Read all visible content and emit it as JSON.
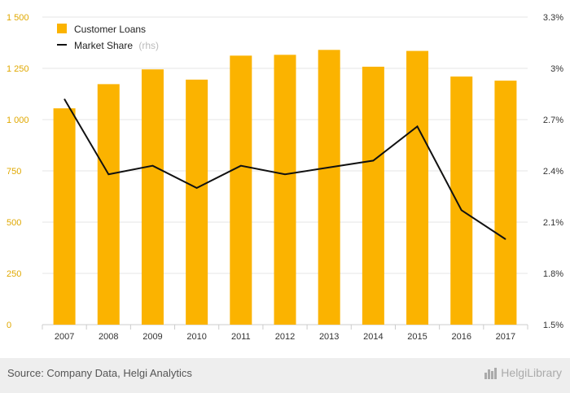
{
  "chart_data": {
    "type": "bar+line",
    "categories": [
      "2007",
      "2008",
      "2009",
      "2010",
      "2011",
      "2012",
      "2013",
      "2014",
      "2015",
      "2016",
      "2017"
    ],
    "series": [
      {
        "name": "Customer Loans",
        "type": "bar",
        "axis": "left",
        "values": [
          1055,
          1173,
          1245,
          1195,
          1312,
          1316,
          1340,
          1258,
          1335,
          1210,
          1190
        ]
      },
      {
        "name": "Market Share",
        "note": "(rhs)",
        "type": "line",
        "axis": "right",
        "values": [
          2.82,
          2.38,
          2.43,
          2.3,
          2.43,
          2.38,
          2.42,
          2.46,
          2.66,
          2.17,
          2.0
        ]
      }
    ],
    "left_axis": {
      "min": 0,
      "max": 1500,
      "ticks": [
        0,
        250,
        500,
        750,
        1000,
        1250,
        1500
      ],
      "tick_labels": [
        "0",
        "250",
        "500",
        "750",
        "1 000",
        "1 250",
        "1 500"
      ]
    },
    "right_axis": {
      "min": 1.5,
      "max": 3.3,
      "ticks": [
        1.5,
        1.8,
        2.1,
        2.4,
        2.7,
        3.0,
        3.3
      ],
      "tick_labels": [
        "1.5%",
        "1.8%",
        "2.1%",
        "2.4%",
        "2.7%",
        "3%",
        "3.3%"
      ]
    },
    "legend_position": "top-left",
    "colors": {
      "bar": "#fbb300",
      "line": "#111111",
      "left_ticks": "#e0a800"
    }
  },
  "footer": {
    "source": "Source: Company Data, Helgi Analytics",
    "brand": "HelgiLibrary"
  }
}
